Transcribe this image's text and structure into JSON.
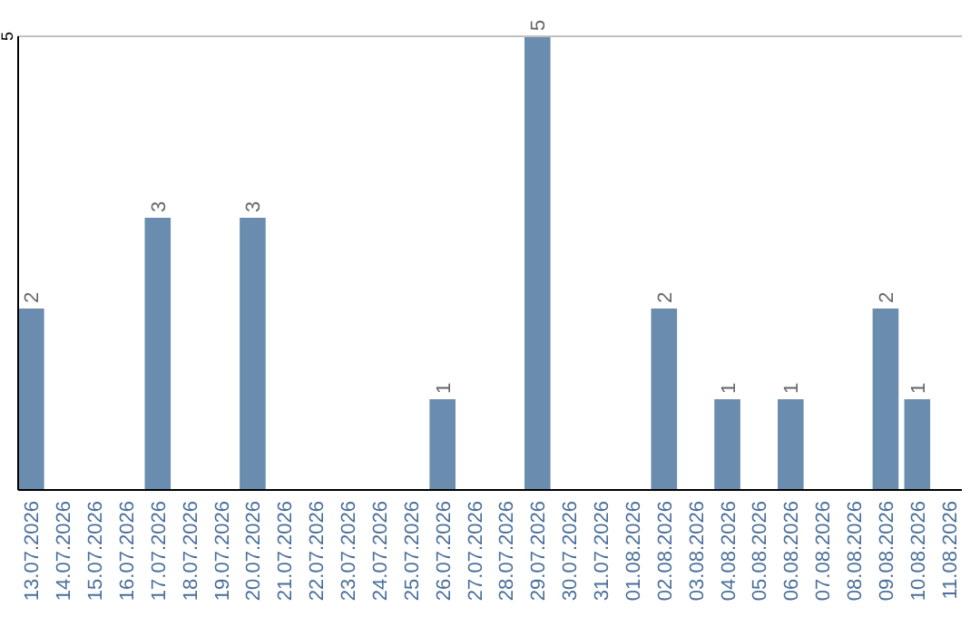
{
  "chart_data": {
    "type": "bar",
    "categories": [
      "13.07.2026",
      "14.07.2026",
      "15.07.2026",
      "16.07.2026",
      "17.07.2026",
      "18.07.2026",
      "19.07.2026",
      "20.07.2026",
      "21.07.2026",
      "22.07.2026",
      "23.07.2026",
      "24.07.2026",
      "25.07.2026",
      "26.07.2026",
      "27.07.2026",
      "28.07.2026",
      "29.07.2026",
      "30.07.2026",
      "31.07.2026",
      "01.08.2026",
      "02.08.2026",
      "03.08.2026",
      "04.08.2026",
      "05.08.2026",
      "06.08.2026",
      "07.08.2026",
      "08.08.2026",
      "09.08.2026",
      "10.08.2026",
      "11.08.2026"
    ],
    "values": [
      2,
      0,
      0,
      0,
      3,
      0,
      0,
      3,
      0,
      0,
      0,
      0,
      0,
      1,
      0,
      0,
      5,
      0,
      0,
      0,
      2,
      0,
      1,
      0,
      1,
      0,
      0,
      2,
      1,
      0
    ],
    "value_labels": [
      "2",
      null,
      null,
      null,
      "3",
      null,
      null,
      "3",
      null,
      null,
      null,
      null,
      null,
      "1",
      null,
      null,
      "5",
      null,
      null,
      null,
      "2",
      null,
      "1",
      null,
      "1",
      null,
      null,
      "2",
      "1",
      null
    ],
    "color": "#6a8caf",
    "ylim": [
      0,
      5
    ],
    "yticks": [
      5
    ]
  }
}
